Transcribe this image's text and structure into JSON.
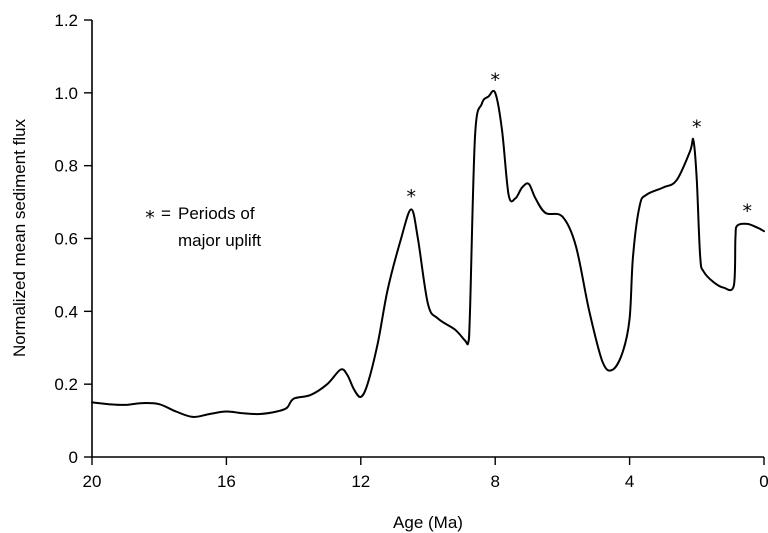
{
  "chart_data": {
    "type": "line",
    "xlabel": "Age (Ma)",
    "ylabel": "Normalized mean sediment flux",
    "xlim": [
      20,
      0
    ],
    "ylim": [
      0,
      1.2
    ],
    "x_reversed": true,
    "grid": false,
    "x_ticks": [
      20,
      16,
      12,
      8,
      4,
      0
    ],
    "x_tick_labels": [
      "20",
      "16",
      "12",
      "8",
      "4",
      "0"
    ],
    "y_ticks": [
      0,
      0.2,
      0.4,
      0.6,
      0.8,
      1.0,
      1.2
    ],
    "y_tick_labels": [
      "0",
      "0.2",
      "0.4",
      "0.6",
      "0.8",
      "1.0",
      "1.2"
    ],
    "series": [
      {
        "x": [
          20,
          19.5,
          19,
          18.5,
          18,
          17.5,
          17,
          16.5,
          16,
          15.5,
          15,
          14.5,
          14.2,
          14,
          13.5,
          13,
          12.6,
          12.4,
          12.2,
          12,
          11.8,
          11.5,
          11.2,
          10.8,
          10.5,
          10.3,
          10,
          9.7,
          9.2,
          8.9,
          8.8,
          8.75,
          8.6,
          8.4,
          8.2,
          8.0,
          7.8,
          7.6,
          7.4,
          7.2,
          7.0,
          6.8,
          6.5,
          6.0,
          5.6,
          5.2,
          4.8,
          4.5,
          4.2,
          4.0,
          3.9,
          3.7,
          3.5,
          3.0,
          2.6,
          2.2,
          2.1,
          2.0,
          1.9,
          1.8,
          1.5,
          1.2,
          0.9,
          0.85,
          0.8,
          0.5,
          0.2,
          0
        ],
        "values": [
          0.15,
          0.145,
          0.143,
          0.148,
          0.145,
          0.125,
          0.11,
          0.118,
          0.125,
          0.12,
          0.118,
          0.125,
          0.135,
          0.16,
          0.17,
          0.2,
          0.24,
          0.225,
          0.185,
          0.165,
          0.2,
          0.31,
          0.46,
          0.6,
          0.68,
          0.6,
          0.42,
          0.38,
          0.35,
          0.32,
          0.315,
          0.4,
          0.88,
          0.97,
          0.99,
          1.0,
          0.9,
          0.72,
          0.71,
          0.74,
          0.75,
          0.71,
          0.67,
          0.66,
          0.58,
          0.4,
          0.26,
          0.24,
          0.29,
          0.38,
          0.55,
          0.69,
          0.72,
          0.74,
          0.76,
          0.84,
          0.87,
          0.76,
          0.55,
          0.51,
          0.48,
          0.465,
          0.47,
          0.6,
          0.635,
          0.64,
          0.63,
          0.62
        ]
      }
    ],
    "annotations": [
      {
        "x": 10.5,
        "y": 0.72,
        "text": "*"
      },
      {
        "x": 8.0,
        "y": 1.04,
        "text": "*"
      },
      {
        "x": 2.0,
        "y": 0.91,
        "text": "*"
      },
      {
        "x": 0.5,
        "y": 0.68,
        "text": "*"
      }
    ],
    "legend": {
      "symbol": "*",
      "equals": "=",
      "line1": "Periods of",
      "line2": "major uplift",
      "placement": "left"
    }
  }
}
